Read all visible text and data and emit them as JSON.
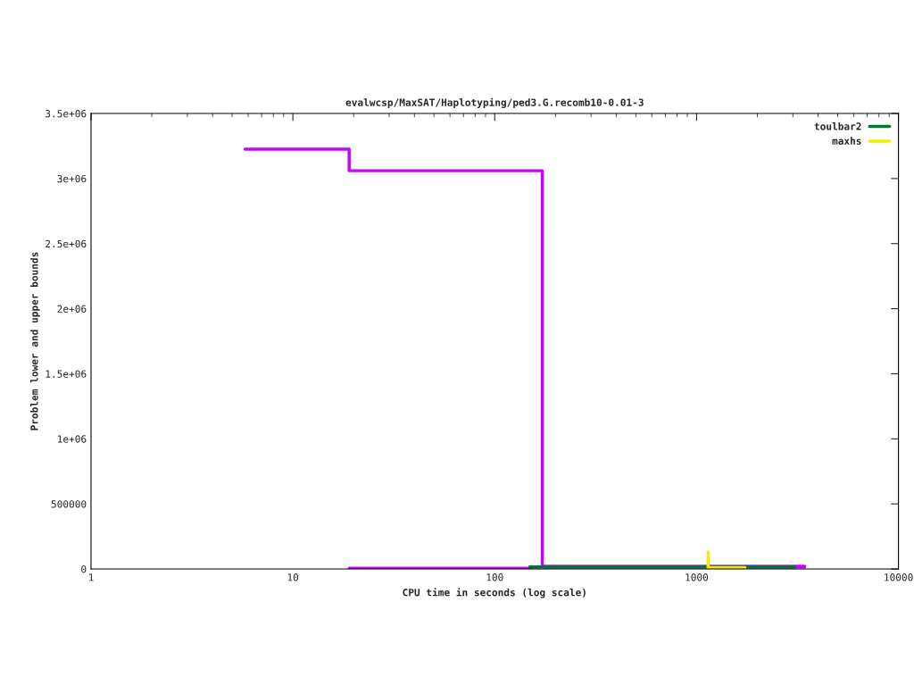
{
  "chart_data": {
    "type": "line",
    "title": "evalwcsp/MaxSAT/Haplotyping/ped3.G.recomb10-0.01-3",
    "xlabel": "CPU time in seconds (log scale)",
    "ylabel": "Problem lower and upper bounds",
    "log": "x",
    "xlim": [
      1,
      10000
    ],
    "xticks": [
      1,
      10,
      100,
      1000,
      10000
    ],
    "ylim": [
      0,
      3500000
    ],
    "yticks": [
      {
        "value": 0,
        "label": "0"
      },
      {
        "value": 500000,
        "label": "500000"
      },
      {
        "value": 1000000,
        "label": "1e+06"
      },
      {
        "value": 1500000,
        "label": "1.5e+06"
      },
      {
        "value": 2000000,
        "label": "2e+06"
      },
      {
        "value": 2500000,
        "label": "2.5e+06"
      },
      {
        "value": 3000000,
        "label": "3e+06"
      },
      {
        "value": 3500000,
        "label": "3.5e+06"
      }
    ],
    "legend": "top right",
    "grid": false,
    "series": [
      {
        "color": "#cc00ff",
        "x": [
          5.8,
          19,
          19,
          172,
          172,
          3430
        ],
        "values": [
          3225000,
          3225000,
          3060000,
          3060000,
          20000,
          20000
        ]
      },
      {
        "color": "#cc00ff",
        "x": [
          19,
          150,
          150,
          3430
        ],
        "values": [
          5000,
          5000,
          15000,
          15000
        ]
      },
      {
        "name": "toulbar2",
        "color": "#007733",
        "x": [
          149,
          3070
        ],
        "values": [
          15000,
          15000
        ]
      },
      {
        "name": "maxhs",
        "color": "#eeee00",
        "x": [
          1140,
          1140,
          1735
        ],
        "values": [
          130000,
          10000,
          10000
        ]
      }
    ]
  }
}
